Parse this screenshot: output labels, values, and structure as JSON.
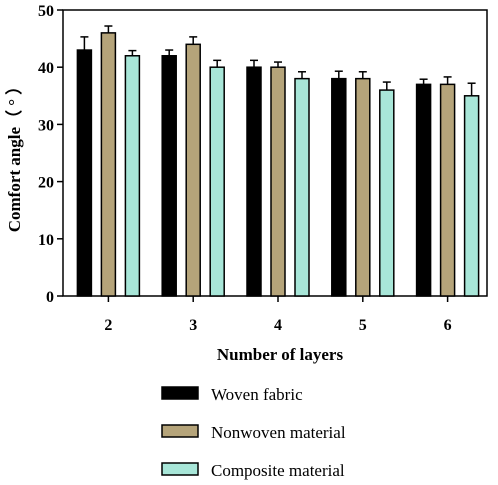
{
  "chart_data": {
    "type": "bar",
    "categories": [
      "2",
      "3",
      "4",
      "5",
      "6"
    ],
    "series": [
      {
        "name": "Woven fabric",
        "values": [
          43,
          42,
          40,
          38,
          37
        ],
        "errors": [
          2.3,
          1.0,
          1.2,
          1.3,
          0.9
        ],
        "color": "#000000"
      },
      {
        "name": "Nonwoven material",
        "values": [
          46,
          44,
          40,
          38,
          37
        ],
        "errors": [
          1.2,
          1.3,
          0.9,
          1.2,
          1.3
        ],
        "color": "#b5a47a"
      },
      {
        "name": "Composite material",
        "values": [
          42,
          40,
          38,
          36,
          35
        ],
        "errors": [
          0.9,
          1.2,
          1.2,
          1.4,
          2.2
        ],
        "color": "#a8e6d8"
      }
    ],
    "xlabel": "Number of layers",
    "ylabel": "Comfort angle（ ° ）",
    "ylim": [
      0,
      50
    ],
    "yticks": [
      "0",
      "10",
      "20",
      "30",
      "40",
      "50"
    ],
    "legend_position": "bottom",
    "grid": false
  }
}
